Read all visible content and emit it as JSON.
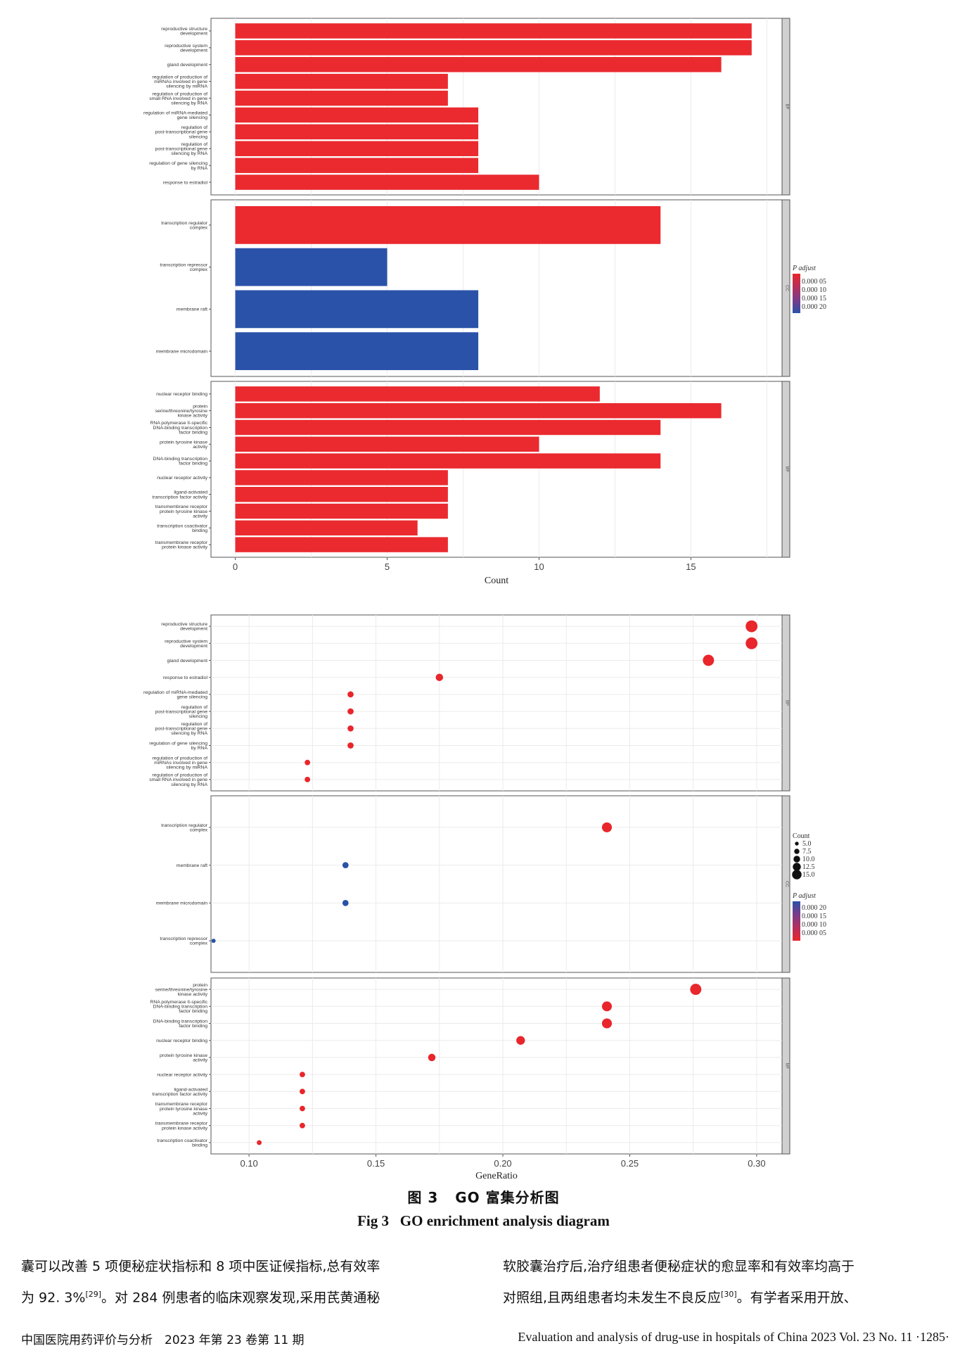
{
  "chart_data": [
    {
      "type": "bar",
      "xlabel": "Count",
      "xlim": [
        -0.8,
        18.0
      ],
      "xticks": [
        0,
        5,
        10,
        15
      ],
      "legend": {
        "title": "P adjust",
        "placement": "right",
        "labels": [
          "0.000 05",
          "0.000 10",
          "0.000 15",
          "0.000 20"
        ],
        "colors": [
          "#e8262b",
          "#b42f5c",
          "#7a3b8a",
          "#2a52a8"
        ]
      },
      "facets": [
        {
          "name": "BP",
          "label": "BP",
          "bars": [
            {
              "label": [
                "reproductive structure",
                "development"
              ],
              "value": 17,
              "color": "#ea2a2f"
            },
            {
              "label": [
                "reproductive system",
                "development"
              ],
              "value": 17,
              "color": "#ea2a2f"
            },
            {
              "label": [
                "gland development"
              ],
              "value": 16,
              "color": "#ea2a2f"
            },
            {
              "label": [
                "regulation of production of",
                "miRNAs involved in gene",
                "silencing by miRNA"
              ],
              "value": 7,
              "color": "#ea2a2f"
            },
            {
              "label": [
                "regulation of production of",
                "small RNA involved in gene",
                "silencing by RNA"
              ],
              "value": 7,
              "color": "#ea2a2f"
            },
            {
              "label": [
                "regulation of miRNA-mediated",
                "gene silencing"
              ],
              "value": 8,
              "color": "#ea2a2f"
            },
            {
              "label": [
                "regulation of",
                "post-transcriptional gene",
                "silencing"
              ],
              "value": 8,
              "color": "#ea2a2f"
            },
            {
              "label": [
                "regulation of",
                "post-transcriptional gene",
                "silencing by RNA"
              ],
              "value": 8,
              "color": "#ea2a2f"
            },
            {
              "label": [
                "regulation of gene silencing",
                "by RNA"
              ],
              "value": 8,
              "color": "#ea2a2f"
            },
            {
              "label": [
                "response to estradiol"
              ],
              "value": 10,
              "color": "#ea2a2f"
            }
          ]
        },
        {
          "name": "CC",
          "label": "CC",
          "bars": [
            {
              "label": [
                "transcription regulator",
                "complex"
              ],
              "value": 14,
              "color": "#ea2a2f"
            },
            {
              "label": [
                "transcription repressor",
                "complex"
              ],
              "value": 5,
              "color": "#2a52a8"
            },
            {
              "label": [
                "membrane raft"
              ],
              "value": 8,
              "color": "#2a52a8"
            },
            {
              "label": [
                "membrane microdomain"
              ],
              "value": 8,
              "color": "#2a52a8"
            }
          ]
        },
        {
          "name": "MF",
          "label": "MF",
          "bars": [
            {
              "label": [
                "nuclear receptor binding"
              ],
              "value": 12,
              "color": "#ea2a2f"
            },
            {
              "label": [
                "protein",
                "serine/threonine/tyrosine",
                "kinase activity"
              ],
              "value": 16,
              "color": "#ea2a2f"
            },
            {
              "label": [
                "RNA polymerase II-specific",
                "DNA-binding transcription",
                "factor binding"
              ],
              "value": 14,
              "color": "#ea2a2f"
            },
            {
              "label": [
                "protein tyrosine kinase",
                "activity"
              ],
              "value": 10,
              "color": "#ea2a2f"
            },
            {
              "label": [
                "DNA-binding transcription",
                "factor binding"
              ],
              "value": 14,
              "color": "#ea2a2f"
            },
            {
              "label": [
                "nuclear receptor activity"
              ],
              "value": 7,
              "color": "#ea2a2f"
            },
            {
              "label": [
                "ligand-activated",
                "transcription factor activity"
              ],
              "value": 7,
              "color": "#ea2a2f"
            },
            {
              "label": [
                "transmembrane receptor",
                "protein tyrosine kinase",
                "activity"
              ],
              "value": 7,
              "color": "#ea2a2f"
            },
            {
              "label": [
                "transcription coactivator",
                "binding"
              ],
              "value": 6,
              "color": "#ea2a2f"
            },
            {
              "label": [
                "transmembrane receptor",
                "protein kinase activity"
              ],
              "value": 7,
              "color": "#ea2a2f"
            }
          ]
        }
      ]
    },
    {
      "type": "scatter",
      "xlabel": "GeneRatio",
      "xlim": [
        0.085,
        0.31
      ],
      "xticks": [
        "0.10",
        "0.15",
        "0.20",
        "0.25",
        "0.30"
      ],
      "legend": {
        "placement": "right",
        "size_title": "Count",
        "size_labels": [
          "5.0",
          "7.5",
          "10.0",
          "12.5",
          "15.0"
        ],
        "color_title": "P adjust",
        "color_labels": [
          "0.000 20",
          "0.000 15",
          "0.000 10",
          "0.000 05"
        ],
        "colors": [
          "#2a52a8",
          "#7a3b8a",
          "#b42f5c",
          "#e8262b"
        ]
      },
      "facets": [
        {
          "name": "BP",
          "label": "BP",
          "points": [
            {
              "label": [
                "reproductive structure",
                "development"
              ],
              "x": 0.298,
              "count": 17,
              "color": "#e8262b"
            },
            {
              "label": [
                "reproductive system",
                "development"
              ],
              "x": 0.298,
              "count": 17,
              "color": "#e8262b"
            },
            {
              "label": [
                "gland development"
              ],
              "x": 0.281,
              "count": 16,
              "color": "#e8262b"
            },
            {
              "label": [
                "response to estradiol"
              ],
              "x": 0.175,
              "count": 10,
              "color": "#e8262b"
            },
            {
              "label": [
                "regulation of miRNA-mediated",
                "gene silencing"
              ],
              "x": 0.14,
              "count": 8,
              "color": "#e8262b"
            },
            {
              "label": [
                "regulation of",
                "post-transcriptional gene",
                "silencing"
              ],
              "x": 0.14,
              "count": 8,
              "color": "#e8262b"
            },
            {
              "label": [
                "regulation of",
                "post-transcriptional gene",
                "silencing by RNA"
              ],
              "x": 0.14,
              "count": 8,
              "color": "#e8262b"
            },
            {
              "label": [
                "regulation of gene silencing",
                "by RNA"
              ],
              "x": 0.14,
              "count": 8,
              "color": "#e8262b"
            },
            {
              "label": [
                "regulation of production of",
                "miRNAs involved in gene",
                "silencing by miRNA"
              ],
              "x": 0.123,
              "count": 7,
              "color": "#e8262b"
            },
            {
              "label": [
                "regulation of production of",
                "small RNA involved in gene",
                "silencing by RNA"
              ],
              "x": 0.123,
              "count": 7,
              "color": "#e8262b"
            }
          ]
        },
        {
          "name": "CC",
          "label": "CC",
          "points": [
            {
              "label": [
                "transcription regulator",
                "complex"
              ],
              "x": 0.241,
              "count": 14,
              "color": "#e8262b"
            },
            {
              "label": [
                "membrane raft"
              ],
              "x": 0.138,
              "count": 8,
              "color": "#2a52a8"
            },
            {
              "label": [
                "membrane microdomain"
              ],
              "x": 0.138,
              "count": 8,
              "color": "#2a52a8"
            },
            {
              "label": [
                "transcription repressor",
                "complex"
              ],
              "x": 0.086,
              "count": 5,
              "color": "#2a52a8"
            }
          ]
        },
        {
          "name": "MF",
          "label": "MF",
          "points": [
            {
              "label": [
                "protein",
                "serine/threonine/tyrosine",
                "kinase activity"
              ],
              "x": 0.276,
              "count": 16,
              "color": "#e8262b"
            },
            {
              "label": [
                "RNA polymerase II-specific",
                "DNA-binding transcription",
                "factor binding"
              ],
              "x": 0.241,
              "count": 14,
              "color": "#e8262b"
            },
            {
              "label": [
                "DNA-binding transcription",
                "factor binding"
              ],
              "x": 0.241,
              "count": 14,
              "color": "#e8262b"
            },
            {
              "label": [
                "nuclear receptor binding"
              ],
              "x": 0.207,
              "count": 12,
              "color": "#e8262b"
            },
            {
              "label": [
                "protein tyrosine kinase",
                "activity"
              ],
              "x": 0.172,
              "count": 10,
              "color": "#e8262b"
            },
            {
              "label": [
                "nuclear receptor activity"
              ],
              "x": 0.121,
              "count": 7,
              "color": "#e8262b"
            },
            {
              "label": [
                "ligand-activated",
                "transcription factor activity"
              ],
              "x": 0.121,
              "count": 7,
              "color": "#e8262b"
            },
            {
              "label": [
                "transmembrane receptor",
                "protein tyrosine kinase",
                "activity"
              ],
              "x": 0.121,
              "count": 7,
              "color": "#e8262b"
            },
            {
              "label": [
                "transmembrane receptor",
                "protein kinase activity"
              ],
              "x": 0.121,
              "count": 7,
              "color": "#e8262b"
            },
            {
              "label": [
                "transcription coactivator",
                "binding"
              ],
              "x": 0.104,
              "count": 6,
              "color": "#e8262b"
            }
          ]
        }
      ]
    }
  ],
  "caption": {
    "cn_prefix": "图 3",
    "cn_title": "GO 富集分析图",
    "en_prefix": "Fig 3",
    "en_title": "GO enrichment analysis diagram"
  },
  "body_text": {
    "left": [
      {
        "text": "囊可以改善 5 项便秘症状指标和 8 项中医证候指标,总有效率",
        "ref": ""
      },
      {
        "text": "为 92. 3%",
        "ref": "[29]",
        "after": "。对 284 例患者的临床观察发现,采用芪黄通秘"
      }
    ],
    "right": [
      {
        "text": "软胶囊治疗后,治疗组患者便秘症状的愈显率和有效率均高于",
        "ref": ""
      },
      {
        "text": "对照组,且两组患者均未发生不良反应",
        "ref": "[30]",
        "after": "。有学者采用开放、"
      }
    ]
  },
  "footer": {
    "left": "中国医院用药评价与分析　2023 年第 23 卷第 11 期",
    "right": "Evaluation and analysis of drug-use in hospitals of China 2023 Vol. 23 No. 11 ·1285·"
  }
}
